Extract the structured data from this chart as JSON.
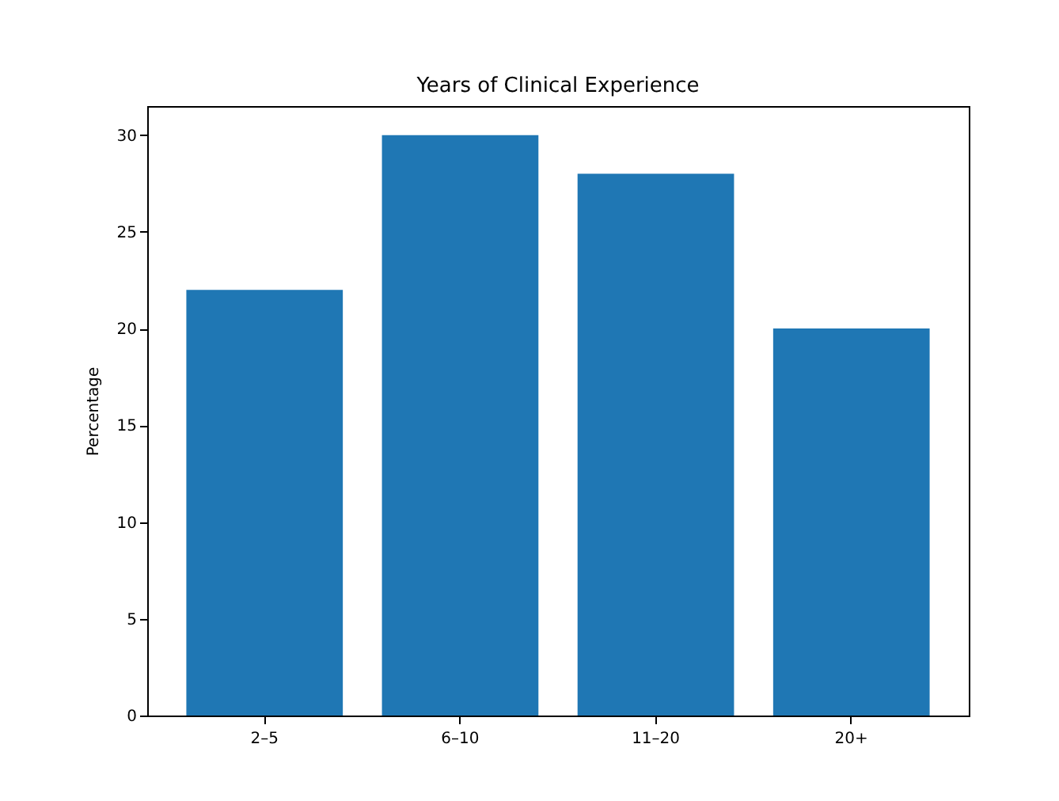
{
  "chart_data": {
    "type": "bar",
    "title": "Years of Clinical Experience",
    "ylabel": "Percentage",
    "categories": [
      "2–5",
      "6–10",
      "11–20",
      "20+"
    ],
    "values": [
      22,
      30,
      28,
      20
    ],
    "color": "#1f77b4",
    "ylim": [
      0,
      31.5
    ],
    "yticks": [
      0,
      5,
      10,
      15,
      20,
      25,
      30
    ],
    "grid": false
  }
}
